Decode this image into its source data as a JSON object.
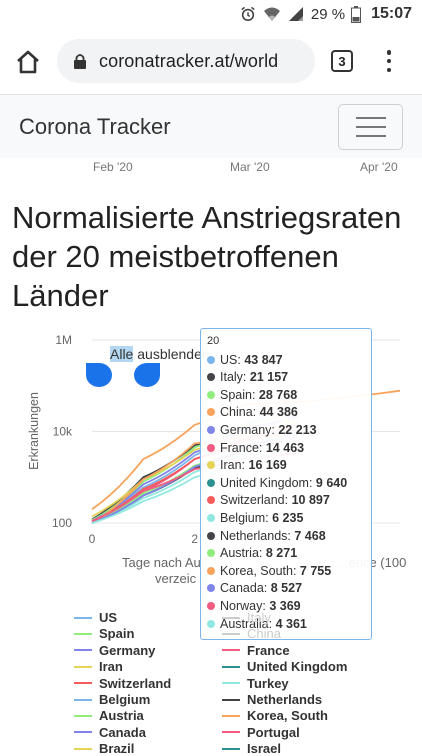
{
  "status": {
    "battery": "29 %",
    "time": "15:07"
  },
  "browser": {
    "url": "coronatracker.at/world",
    "tab_count": "3"
  },
  "navbar": {
    "brand": "Corona Tracker"
  },
  "prev_chart_axis": [
    "Feb '20",
    "Mar '20",
    "Apr '20"
  ],
  "heading": "Normalisierte Anstriegsraten der 20 meistbetroffenen Länder",
  "chart": {
    "hide_all_hl": "Alle",
    "hide_all_rest": " ausblenden",
    "ylabel": "Erkrankungen",
    "xlabel": "Tage nach Au...f ...t ...t Eru... ...nnce (100",
    "xlabel_line1": "Tage nach Au",
    "xlabel_line1b": "...ence (100",
    "xlabel_line2": "verzeic",
    "yticks": [
      "1M",
      "10k",
      "100"
    ],
    "xticks": [
      "0",
      "2"
    ],
    "colors": {
      "blue_handle": "#1a73e8",
      "tooltip_border": "#7cb5ec"
    }
  },
  "chart_data": {
    "type": "line",
    "title": "Normalisierte Anstriegsraten der 20 meistbetroffenen Länder",
    "xlabel": "Tage nach Au... (100 verzeic...",
    "ylabel": "Erkrankungen",
    "yscale": "log",
    "ylim": [
      100,
      1000000
    ],
    "yticks": [
      "100",
      "10k",
      "1M"
    ],
    "xticks": [
      "0",
      "2"
    ],
    "tooltip_x": "20",
    "series": [
      {
        "name": "US",
        "color": "#7cb5ec",
        "tooltip_value": "43 847",
        "points": [
          [
            0,
            110
          ],
          [
            5,
            600
          ],
          [
            10,
            3000
          ],
          [
            15,
            15000
          ],
          [
            20,
            43847
          ]
        ]
      },
      {
        "name": "Italy",
        "color": "#434348",
        "tooltip_value": "21 157",
        "points": [
          [
            0,
            120
          ],
          [
            5,
            1000
          ],
          [
            10,
            5000
          ],
          [
            15,
            12000
          ],
          [
            20,
            21157
          ]
        ]
      },
      {
        "name": "Spain",
        "color": "#90ed7d",
        "tooltip_value": "28 768",
        "points": [
          [
            0,
            115
          ],
          [
            5,
            800
          ],
          [
            10,
            4500
          ],
          [
            15,
            14000
          ],
          [
            20,
            28768
          ]
        ]
      },
      {
        "name": "China",
        "color": "#f7a35c",
        "tooltip_value": "44 386",
        "points": [
          [
            0,
            200
          ],
          [
            5,
            2500
          ],
          [
            10,
            14000
          ],
          [
            15,
            40000
          ],
          [
            20,
            44386
          ],
          [
            30,
            78000
          ]
        ]
      },
      {
        "name": "Germany",
        "color": "#8085e9",
        "tooltip_value": "22 213",
        "points": [
          [
            0,
            110
          ],
          [
            5,
            700
          ],
          [
            10,
            3500
          ],
          [
            15,
            11000
          ],
          [
            20,
            22213
          ]
        ]
      },
      {
        "name": "France",
        "color": "#f15c80",
        "tooltip_value": "14 463",
        "points": [
          [
            0,
            105
          ],
          [
            5,
            500
          ],
          [
            10,
            2500
          ],
          [
            15,
            7500
          ],
          [
            20,
            14463
          ]
        ]
      },
      {
        "name": "Iran",
        "color": "#e4d354",
        "tooltip_value": "16 169",
        "points": [
          [
            0,
            140
          ],
          [
            5,
            900
          ],
          [
            10,
            4000
          ],
          [
            15,
            9000
          ],
          [
            20,
            16169
          ]
        ]
      },
      {
        "name": "United Kingdom",
        "color": "#2b908f",
        "tooltip_value": "9 640",
        "points": [
          [
            0,
            100
          ],
          [
            5,
            400
          ],
          [
            10,
            1700
          ],
          [
            15,
            5000
          ],
          [
            20,
            9640
          ]
        ]
      },
      {
        "name": "Switzerland",
        "color": "#f45b5b",
        "tooltip_value": "10 897",
        "points": [
          [
            0,
            110
          ],
          [
            5,
            550
          ],
          [
            10,
            2500
          ],
          [
            15,
            6500
          ],
          [
            20,
            10897
          ]
        ]
      },
      {
        "name": "Belgium",
        "color": "#91e8e1",
        "tooltip_value": "6 235",
        "points": [
          [
            0,
            100
          ],
          [
            5,
            350
          ],
          [
            10,
            1300
          ],
          [
            15,
            3500
          ],
          [
            20,
            6235
          ]
        ]
      },
      {
        "name": "Netherlands",
        "color": "#434348",
        "tooltip_value": "7 468",
        "points": [
          [
            0,
            100
          ],
          [
            5,
            400
          ],
          [
            10,
            1600
          ],
          [
            15,
            4200
          ],
          [
            20,
            7468
          ]
        ]
      },
      {
        "name": "Austria",
        "color": "#90ed7d",
        "tooltip_value": "8 271",
        "points": [
          [
            0,
            100
          ],
          [
            5,
            450
          ],
          [
            10,
            1800
          ],
          [
            15,
            4800
          ],
          [
            20,
            8271
          ]
        ]
      },
      {
        "name": "Korea, South",
        "color": "#f7a35c",
        "tooltip_value": "7 755",
        "points": [
          [
            0,
            100
          ],
          [
            5,
            900
          ],
          [
            10,
            5500
          ],
          [
            15,
            7400
          ],
          [
            20,
            7755
          ]
        ]
      },
      {
        "name": "Canada",
        "color": "#8085e9",
        "tooltip_value": "8 527",
        "points": [
          [
            0,
            100
          ],
          [
            5,
            400
          ],
          [
            10,
            1700
          ],
          [
            15,
            4800
          ],
          [
            20,
            8527
          ]
        ]
      },
      {
        "name": "Norway",
        "color": "#f15c80",
        "tooltip_value": "3 369",
        "points": [
          [
            0,
            110
          ],
          [
            5,
            500
          ],
          [
            10,
            1500
          ],
          [
            15,
            2600
          ],
          [
            20,
            3369
          ]
        ]
      },
      {
        "name": "Australia",
        "color": "#91e8e1",
        "tooltip_value": "4 361",
        "points": [
          [
            0,
            100
          ],
          [
            5,
            300
          ],
          [
            10,
            1000
          ],
          [
            15,
            2500
          ],
          [
            20,
            4361
          ]
        ]
      }
    ]
  },
  "legend": [
    {
      "name": "US",
      "color": "#7cb5ec",
      "muted": false
    },
    {
      "name": "Italy",
      "color": "#cccccc",
      "muted": true
    },
    {
      "name": "Spain",
      "color": "#90ed7d",
      "muted": false
    },
    {
      "name": "China",
      "color": "#cccccc",
      "muted": true
    },
    {
      "name": "Germany",
      "color": "#8085e9",
      "muted": false
    },
    {
      "name": "France",
      "color": "#f15c80",
      "muted": false
    },
    {
      "name": "Iran",
      "color": "#e4d354",
      "muted": false
    },
    {
      "name": "United Kingdom",
      "color": "#2b908f",
      "muted": false
    },
    {
      "name": "Switzerland",
      "color": "#f45b5b",
      "muted": false
    },
    {
      "name": "Turkey",
      "color": "#91e8e1",
      "muted": false
    },
    {
      "name": "Belgium",
      "color": "#7cb5ec",
      "muted": false
    },
    {
      "name": "Netherlands",
      "color": "#434348",
      "muted": false
    },
    {
      "name": "Austria",
      "color": "#90ed7d",
      "muted": false
    },
    {
      "name": "Korea, South",
      "color": "#f7a35c",
      "muted": false
    },
    {
      "name": "Canada",
      "color": "#8085e9",
      "muted": false
    },
    {
      "name": "Portugal",
      "color": "#f15c80",
      "muted": false
    },
    {
      "name": "Brazil",
      "color": "#e4d354",
      "muted": false
    },
    {
      "name": "Israel",
      "color": "#2b908f",
      "muted": false
    }
  ]
}
